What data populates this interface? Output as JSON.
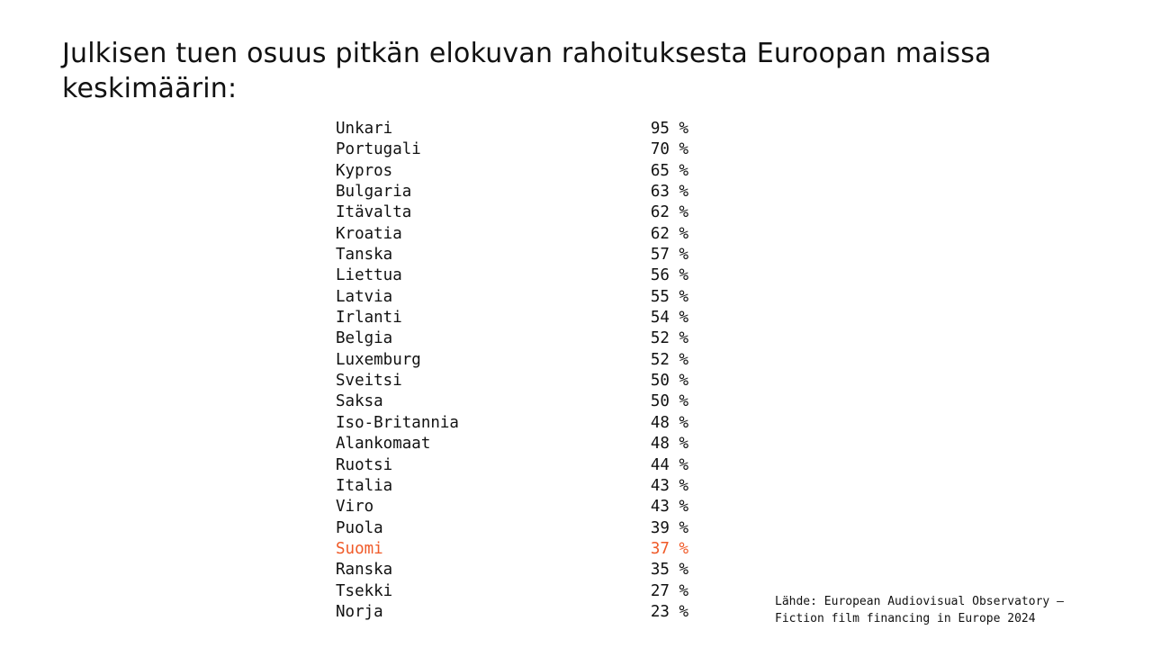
{
  "title": "Julkisen tuen osuus pitkän elokuvan rahoituksesta Euroopan maissa keskimäärin:",
  "colors": {
    "text": "#111111",
    "highlight": "#f05a28",
    "background": "#ffffff"
  },
  "highlight_country": "Suomi",
  "rows": [
    {
      "country": "Unkari",
      "value": "95 %"
    },
    {
      "country": "Portugali",
      "value": "70 %"
    },
    {
      "country": "Kypros",
      "value": "65 %"
    },
    {
      "country": "Bulgaria",
      "value": "63 %"
    },
    {
      "country": "Itävalta",
      "value": "62 %"
    },
    {
      "country": "Kroatia",
      "value": "62 %"
    },
    {
      "country": "Tanska",
      "value": "57 %"
    },
    {
      "country": "Liettua",
      "value": "56 %"
    },
    {
      "country": "Latvia",
      "value": "55 %"
    },
    {
      "country": "Irlanti",
      "value": "54 %"
    },
    {
      "country": "Belgia",
      "value": "52 %"
    },
    {
      "country": "Luxemburg",
      "value": "52 %"
    },
    {
      "country": "Sveitsi",
      "value": "50 %"
    },
    {
      "country": "Saksa",
      "value": "50 %"
    },
    {
      "country": "Iso-Britannia",
      "value": "48 %"
    },
    {
      "country": "Alankomaat",
      "value": "48 %"
    },
    {
      "country": "Ruotsi",
      "value": "44 %"
    },
    {
      "country": "Italia",
      "value": "43 %"
    },
    {
      "country": "Viro",
      "value": "43 %"
    },
    {
      "country": "Puola",
      "value": "39 %"
    },
    {
      "country": "Suomi",
      "value": "37 %"
    },
    {
      "country": "Ranska",
      "value": "35 %"
    },
    {
      "country": "Tsekki",
      "value": "27 %"
    },
    {
      "country": "Norja",
      "value": "23 %"
    }
  ],
  "source": {
    "line1": "Lähde: European Audiovisual Observatory –",
    "line2": "Fiction film financing in Europe 2024"
  }
}
